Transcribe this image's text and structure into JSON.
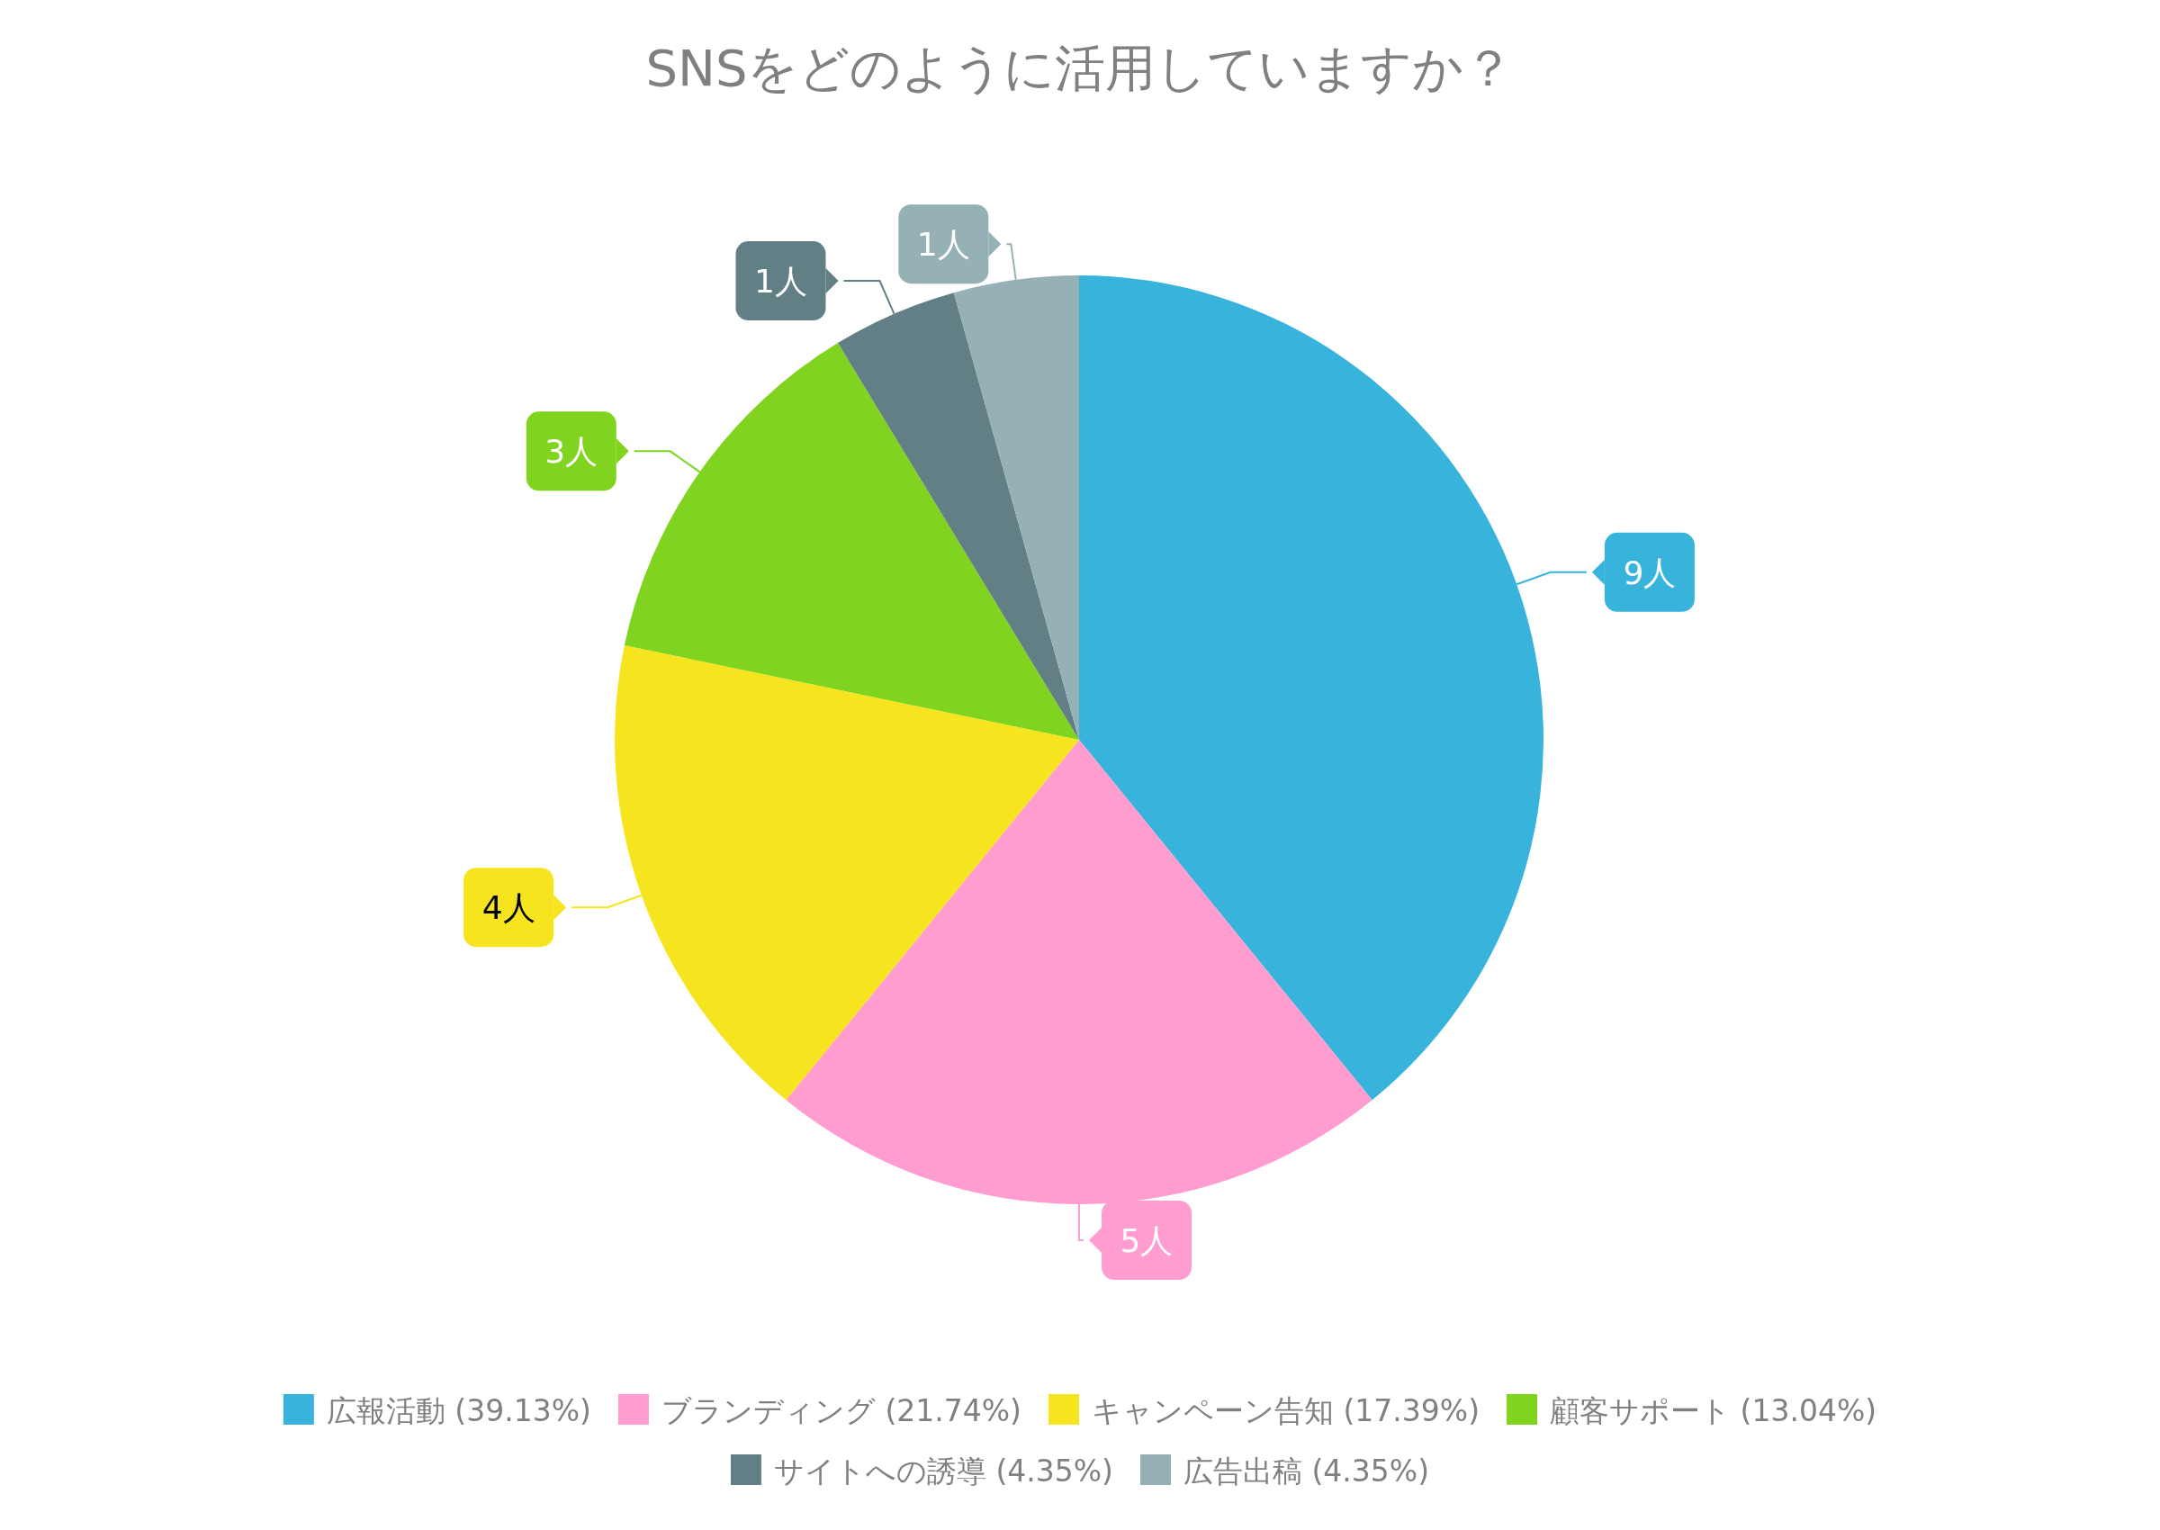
{
  "chart_data": {
    "type": "pie",
    "title": "SNSをどのように活用していますか？",
    "categories": [
      "広報活動 (39.13%)",
      "ブランディング (21.74%)",
      "キャンペーン告知 (17.39%)",
      "顧客サポート (13.04%)",
      "サイトへの誘導 (4.35%)",
      "広告出稿 (4.35%)"
    ],
    "values": [
      9,
      5,
      4,
      3,
      1,
      1
    ],
    "colors": [
      "#37b3dc",
      "#ff9dd0",
      "#f6e51e",
      "#80d31f",
      "#617f84",
      "#96b1b6"
    ],
    "value_labels": [
      "9人",
      "5人",
      "4人",
      "3人",
      "1人",
      "1人"
    ],
    "legend": "bottom"
  }
}
